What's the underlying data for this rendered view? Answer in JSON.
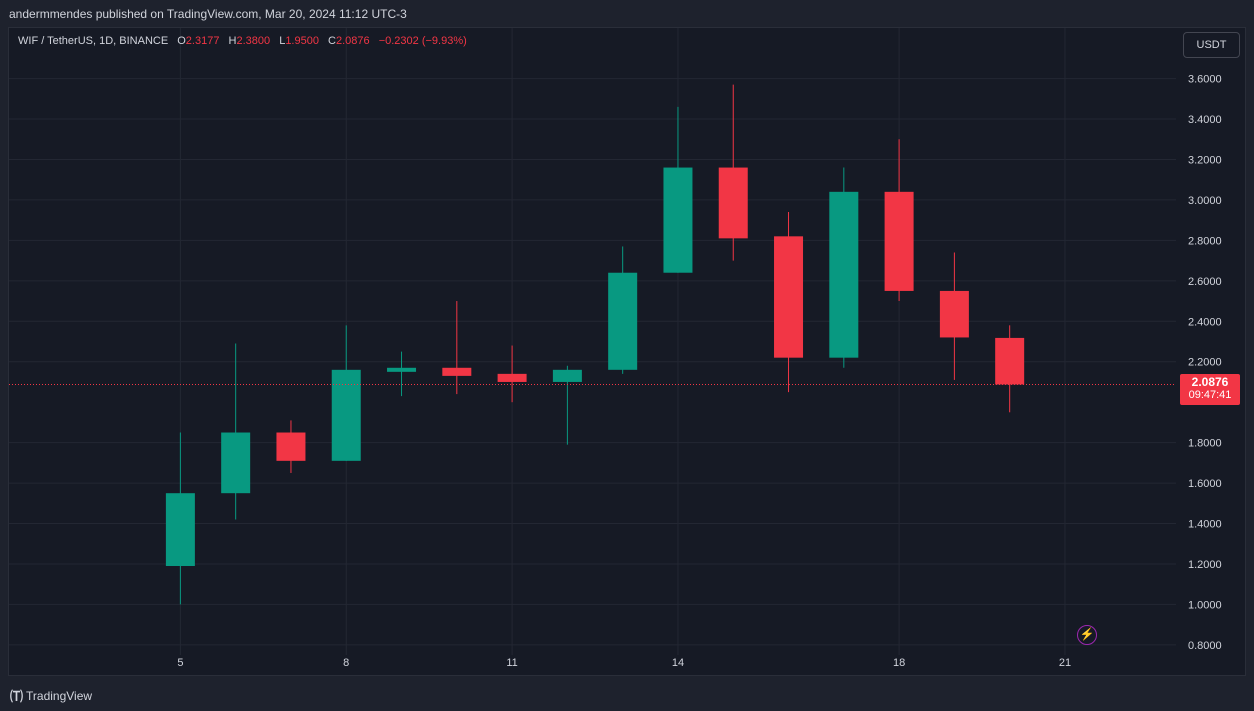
{
  "header": {
    "published_text": "andermmendes published on TradingView.com, Mar 20, 2024 11:12 UTC-3"
  },
  "legend": {
    "symbol": "WIF / TetherUS, 1D, BINANCE",
    "open_label": "O",
    "open": "2.3177",
    "high_label": "H",
    "high": "2.3800",
    "low_label": "L",
    "low": "1.9500",
    "close_label": "C",
    "close": "2.0876",
    "change": "−0.2302 (−9.93%)"
  },
  "currency_button": "USDT",
  "price_tag": {
    "price": "2.0876",
    "countdown": "09:47:41"
  },
  "footer": {
    "brand": "TradingView"
  },
  "colors": {
    "up": "#089981",
    "down": "#f23645",
    "grid": "#232733",
    "background": "#161a25"
  },
  "chart_data": {
    "type": "candlestick",
    "y_ticks": [
      "3.6000",
      "3.4000",
      "3.2000",
      "3.0000",
      "2.8000",
      "2.6000",
      "2.4000",
      "2.2000",
      "1.8000",
      "1.6000",
      "1.4000",
      "1.2000",
      "1.0000",
      "0.8000"
    ],
    "x_ticks": [
      {
        "label": "5",
        "day": 5
      },
      {
        "label": "8",
        "day": 8
      },
      {
        "label": "11",
        "day": 11
      },
      {
        "label": "14",
        "day": 14
      },
      {
        "label": "18",
        "day": 18
      },
      {
        "label": "21",
        "day": 21
      }
    ],
    "ylim": [
      0.75,
      3.85
    ],
    "xlim": [
      1.9,
      22.9
    ],
    "last_price": 2.0876,
    "candles": [
      {
        "day": 5,
        "open": 1.19,
        "high": 1.85,
        "low": 1.0,
        "close": 1.55
      },
      {
        "day": 6,
        "open": 1.55,
        "high": 2.29,
        "low": 1.42,
        "close": 1.85
      },
      {
        "day": 7,
        "open": 1.85,
        "high": 1.91,
        "low": 1.65,
        "close": 1.71
      },
      {
        "day": 8,
        "open": 1.71,
        "high": 2.38,
        "low": 1.71,
        "close": 2.16
      },
      {
        "day": 9,
        "open": 2.15,
        "high": 2.25,
        "low": 2.03,
        "close": 2.17
      },
      {
        "day": 10,
        "open": 2.17,
        "high": 2.5,
        "low": 2.04,
        "close": 2.13
      },
      {
        "day": 11,
        "open": 2.14,
        "high": 2.28,
        "low": 2.0,
        "close": 2.1
      },
      {
        "day": 12,
        "open": 2.1,
        "high": 2.18,
        "low": 1.79,
        "close": 2.16
      },
      {
        "day": 13,
        "open": 2.16,
        "high": 2.77,
        "low": 2.14,
        "close": 2.64
      },
      {
        "day": 14,
        "open": 2.64,
        "high": 3.46,
        "low": 2.64,
        "close": 3.16
      },
      {
        "day": 15,
        "open": 3.16,
        "high": 3.57,
        "low": 2.7,
        "close": 2.81
      },
      {
        "day": 16,
        "open": 2.82,
        "high": 2.94,
        "low": 2.05,
        "close": 2.22
      },
      {
        "day": 17,
        "open": 2.22,
        "high": 3.16,
        "low": 2.17,
        "close": 3.04
      },
      {
        "day": 18,
        "open": 3.04,
        "high": 3.3,
        "low": 2.5,
        "close": 2.55
      },
      {
        "day": 19,
        "open": 2.55,
        "high": 2.74,
        "low": 2.11,
        "close": 2.32
      },
      {
        "day": 20,
        "open": 2.3177,
        "high": 2.38,
        "low": 1.95,
        "close": 2.0876
      }
    ]
  }
}
